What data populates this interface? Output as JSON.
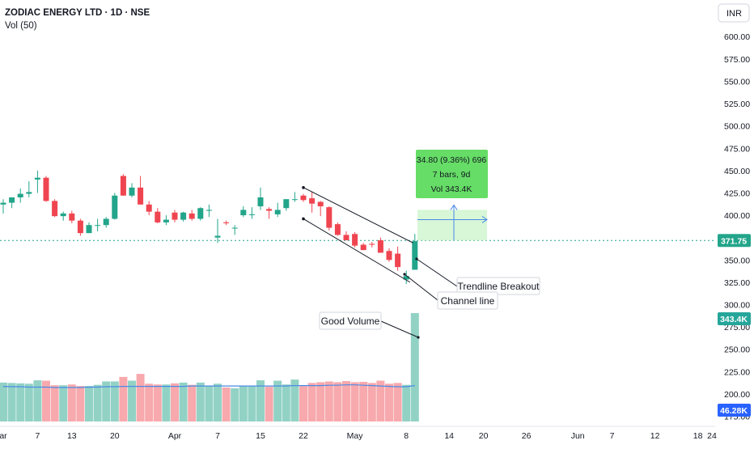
{
  "header": {
    "symbol": "ZODIAC ENERGY LTD · 1D · NSE",
    "indicator": "Vol (50)",
    "currency": "INR"
  },
  "colors": {
    "up": "#22a58a",
    "down": "#ef4550",
    "volume_up": "#92d2c5",
    "volume_down": "#f7a9ad",
    "volume_ma": "#4a8ae6",
    "price_line": "#22a58a",
    "grid_text": "#131722",
    "volume_badge": "#26a69a",
    "ma_badge": "#2962ff",
    "measure_fill": "#c9f4c9",
    "measure_box": "#66dd66",
    "measure_arrow": "#4a8ae6"
  },
  "chart_data": {
    "type": "candlestick",
    "price_axis": {
      "ticks": [
        "600.00",
        "575.00",
        "550.00",
        "525.00",
        "500.00",
        "475.00",
        "450.00",
        "425.00",
        "400.00",
        "375.00",
        "350.00",
        "325.00",
        "300.00",
        "275.00",
        "250.00",
        "225.00",
        "200.00",
        "175.00"
      ],
      "ylim": [
        170,
        612
      ],
      "current_price": "371.75"
    },
    "time_axis": {
      "labels": [
        {
          "text": "ar",
          "slot": 0
        },
        {
          "text": "7",
          "slot": 4
        },
        {
          "text": "13",
          "slot": 8
        },
        {
          "text": "20",
          "slot": 13
        },
        {
          "text": "Apr",
          "slot": 20
        },
        {
          "text": "7",
          "slot": 25
        },
        {
          "text": "15",
          "slot": 30
        },
        {
          "text": "22",
          "slot": 35
        },
        {
          "text": "May",
          "slot": 41
        },
        {
          "text": "8",
          "slot": 47
        },
        {
          "text": "14",
          "slot": 52
        },
        {
          "text": "20",
          "slot": 56
        },
        {
          "text": "26",
          "slot": 61
        },
        {
          "text": "Jun",
          "slot": 67
        },
        {
          "text": "7",
          "slot": 71
        },
        {
          "text": "12",
          "slot": 76
        },
        {
          "text": "18",
          "slot": 81
        },
        {
          "text": "24",
          "slot": 86
        }
      ]
    },
    "candles": [
      {
        "o": 412,
        "h": 418,
        "l": 402,
        "c": 414
      },
      {
        "o": 414,
        "h": 420,
        "l": 408,
        "c": 420
      },
      {
        "o": 420,
        "h": 430,
        "l": 414,
        "c": 424
      },
      {
        "o": 424,
        "h": 438,
        "l": 420,
        "c": 426
      },
      {
        "o": 440,
        "h": 450,
        "l": 425,
        "c": 442
      },
      {
        "o": 442,
        "h": 444,
        "l": 415,
        "c": 416
      },
      {
        "o": 416,
        "h": 418,
        "l": 398,
        "c": 399
      },
      {
        "o": 399,
        "h": 404,
        "l": 394,
        "c": 402
      },
      {
        "o": 402,
        "h": 405,
        "l": 391,
        "c": 394
      },
      {
        "o": 394,
        "h": 396,
        "l": 377,
        "c": 380
      },
      {
        "o": 380,
        "h": 392,
        "l": 380,
        "c": 389
      },
      {
        "o": 389,
        "h": 396,
        "l": 382,
        "c": 389
      },
      {
        "o": 389,
        "h": 398,
        "l": 386,
        "c": 396
      },
      {
        "o": 396,
        "h": 425,
        "l": 395,
        "c": 422
      },
      {
        "o": 444,
        "h": 446,
        "l": 422,
        "c": 422
      },
      {
        "o": 422,
        "h": 436,
        "l": 420,
        "c": 431
      },
      {
        "o": 431,
        "h": 444,
        "l": 412,
        "c": 412
      },
      {
        "o": 412,
        "h": 416,
        "l": 400,
        "c": 404
      },
      {
        "o": 404,
        "h": 408,
        "l": 391,
        "c": 392
      },
      {
        "o": 392,
        "h": 400,
        "l": 389,
        "c": 395
      },
      {
        "o": 403,
        "h": 406,
        "l": 392,
        "c": 395
      },
      {
        "o": 395,
        "h": 404,
        "l": 393,
        "c": 403
      },
      {
        "o": 402,
        "h": 406,
        "l": 394,
        "c": 396
      },
      {
        "o": 396,
        "h": 409,
        "l": 394,
        "c": 408
      },
      {
        "o": 405,
        "h": 412,
        "l": 398,
        "c": 406
      },
      {
        "o": 375,
        "h": 396,
        "l": 369,
        "c": 377
      },
      {
        "o": 392,
        "h": 394,
        "l": 389,
        "c": 391
      },
      {
        "o": 386,
        "h": 389,
        "l": 378,
        "c": 386
      },
      {
        "o": 400,
        "h": 410,
        "l": 398,
        "c": 406
      },
      {
        "o": 401,
        "h": 409,
        "l": 396,
        "c": 401
      },
      {
        "o": 410,
        "h": 431,
        "l": 406,
        "c": 420
      },
      {
        "o": 407,
        "h": 409,
        "l": 396,
        "c": 405
      },
      {
        "o": 401,
        "h": 414,
        "l": 398,
        "c": 406
      },
      {
        "o": 408,
        "h": 418,
        "l": 405,
        "c": 418
      },
      {
        "o": 418,
        "h": 426,
        "l": 415,
        "c": 418
      },
      {
        "o": 422,
        "h": 424,
        "l": 415,
        "c": 417
      },
      {
        "o": 419,
        "h": 426,
        "l": 403,
        "c": 413
      },
      {
        "o": 415,
        "h": 416,
        "l": 399,
        "c": 410
      },
      {
        "o": 409,
        "h": 410,
        "l": 383,
        "c": 386
      },
      {
        "o": 390,
        "h": 392,
        "l": 377,
        "c": 378
      },
      {
        "o": 378,
        "h": 382,
        "l": 372,
        "c": 372
      },
      {
        "o": 379,
        "h": 381,
        "l": 364,
        "c": 366
      },
      {
        "o": 367,
        "h": 369,
        "l": 361,
        "c": 361
      },
      {
        "o": 368,
        "h": 370,
        "l": 364,
        "c": 367
      },
      {
        "o": 372,
        "h": 375,
        "l": 358,
        "c": 358
      },
      {
        "o": 360,
        "h": 363,
        "l": 348,
        "c": 350
      },
      {
        "o": 357,
        "h": 365,
        "l": 338,
        "c": 342
      },
      {
        "o": 328,
        "h": 338,
        "l": 323,
        "c": 332
      },
      {
        "o": 339,
        "h": 379,
        "l": 339,
        "c": 371
      }
    ],
    "volume": {
      "label": "343.4K",
      "ma_label": "46.28K",
      "ma_values": [
        93,
        92,
        92,
        91,
        91,
        91,
        90,
        90,
        90,
        90,
        91,
        91,
        92,
        92,
        93,
        93,
        93,
        93,
        93,
        93,
        93,
        93,
        94,
        94,
        94,
        94,
        94,
        94,
        94,
        94,
        94,
        94,
        94,
        94,
        95,
        95,
        95,
        95,
        96,
        96,
        97,
        97,
        96,
        95,
        94,
        93,
        92,
        92,
        95
      ],
      "values": [
        103,
        102,
        101,
        100,
        109,
        108,
        96,
        96,
        98,
        94,
        94,
        97,
        106,
        106,
        118,
        108,
        126,
        100,
        98,
        98,
        101,
        103,
        97,
        103,
        95,
        100,
        90,
        88,
        93,
        93,
        109,
        92,
        108,
        98,
        111,
        94,
        102,
        104,
        106,
        104,
        107,
        104,
        105,
        102,
        108,
        100,
        102,
        97,
        287
      ]
    }
  },
  "annotations": {
    "measure_line1": "34.80 (9.36%) 696",
    "measure_line2": "7 bars, 9d",
    "measure_line3": "Vol 343.4K",
    "trendline_label": "Trendline Breakout",
    "channel_label": "Channel line",
    "volume_label": "Good Volume"
  }
}
